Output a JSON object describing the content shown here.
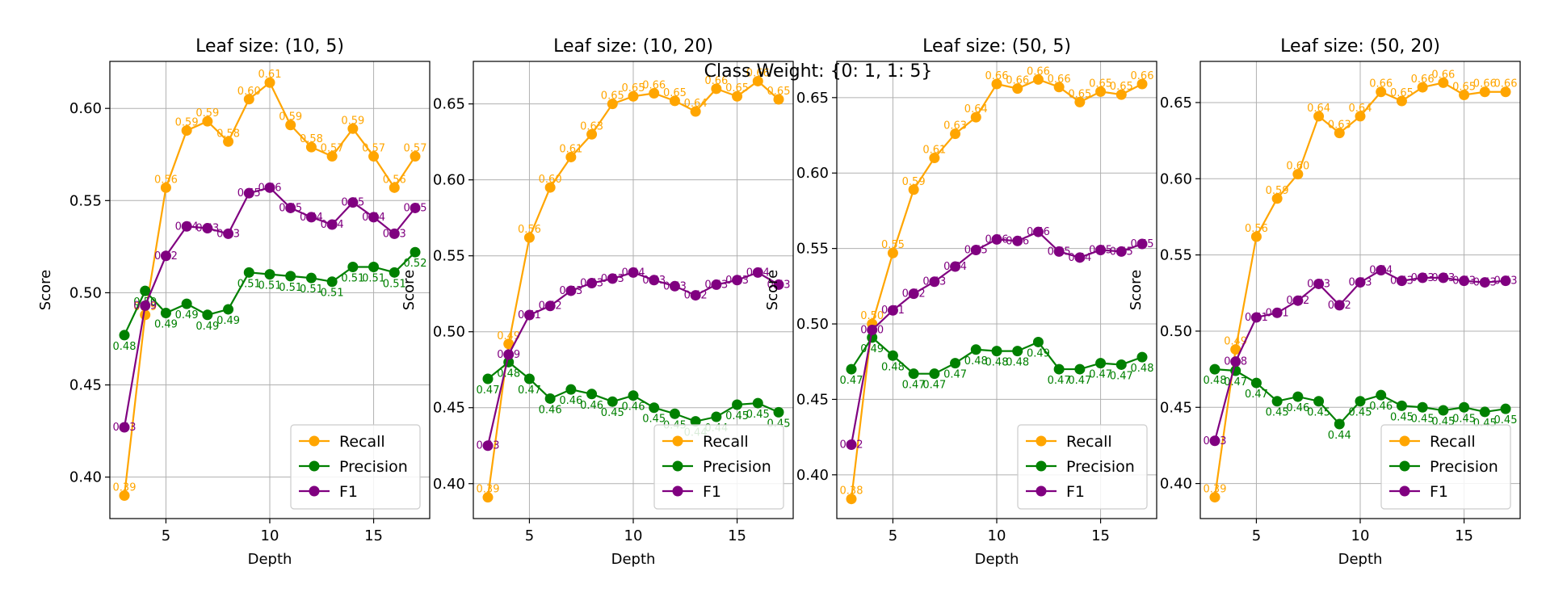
{
  "suptitle": "Class Weight: {0: 1, 1: 5}",
  "colors": {
    "recall": "#FFA500",
    "precision": "#008000",
    "f1": "#800080",
    "grid": "#b0b0b0",
    "axis": "#000000"
  },
  "chart_data": [
    {
      "type": "line",
      "title": "Leaf size: (10, 5)",
      "xlabel": "Depth",
      "ylabel": "Score",
      "x": [
        3,
        4,
        5,
        6,
        7,
        8,
        9,
        10,
        11,
        12,
        13,
        14,
        15,
        16,
        17
      ],
      "xlim": [
        2.3,
        17.7
      ],
      "ylim": [
        0.3775,
        0.6255
      ],
      "xticks": [
        5,
        10,
        15
      ],
      "yticks": [
        0.4,
        0.45,
        0.5,
        0.55,
        0.6
      ],
      "grid": true,
      "legend_position": "lower right",
      "series": [
        {
          "name": "Recall",
          "color": "#FFA500",
          "values": [
            0.39,
            0.488,
            0.557,
            0.588,
            0.593,
            0.582,
            0.605,
            0.614,
            0.591,
            0.579,
            0.574,
            0.589,
            0.574,
            0.557,
            0.574
          ],
          "labels": [
            "0.39",
            "0.49",
            "0.56",
            "0.59",
            "0.59",
            "0.58",
            "0.60",
            "0.61",
            "0.59",
            "0.58",
            "0.57",
            "0.59",
            "0.57",
            "0.56",
            "0.57"
          ]
        },
        {
          "name": "Precision",
          "color": "#008000",
          "values": [
            0.477,
            0.501,
            0.489,
            0.494,
            0.488,
            0.491,
            0.511,
            0.51,
            0.509,
            0.508,
            0.506,
            0.514,
            0.514,
            0.511,
            0.522
          ],
          "labels": [
            "0.48",
            "0.50",
            "0.49",
            "0.49",
            "0.49",
            "0.49",
            "0.51",
            "0.51",
            "0.51",
            "0.51",
            "0.51",
            "0.51",
            "0.51",
            "0.51",
            "0.52"
          ]
        },
        {
          "name": "F1",
          "color": "#800080",
          "values": [
            0.427,
            0.493,
            0.52,
            0.536,
            0.535,
            0.532,
            0.554,
            0.557,
            0.546,
            0.541,
            0.537,
            0.549,
            0.541,
            0.532,
            0.546
          ],
          "labels": [
            "0.43",
            "0.49",
            "0.52",
            "0.54",
            "0.53",
            "0.53",
            "0.55",
            "0.56",
            "0.55",
            "0.54",
            "0.54",
            "0.55",
            "0.54",
            "0.53",
            "0.55"
          ]
        }
      ]
    },
    {
      "type": "line",
      "title": "Leaf size: (10, 20)",
      "xlabel": "Depth",
      "ylabel": "Score",
      "x": [
        3,
        4,
        5,
        6,
        7,
        8,
        9,
        10,
        11,
        12,
        13,
        14,
        15,
        16,
        17
      ],
      "xlim": [
        2.3,
        17.7
      ],
      "ylim": [
        0.377,
        0.678
      ],
      "xticks": [
        5,
        10,
        15
      ],
      "yticks": [
        0.4,
        0.45,
        0.5,
        0.55,
        0.6,
        0.65
      ],
      "grid": true,
      "legend_position": "lower right",
      "series": [
        {
          "name": "Recall",
          "color": "#FFA500",
          "values": [
            0.391,
            0.492,
            0.562,
            0.595,
            0.615,
            0.63,
            0.65,
            0.655,
            0.657,
            0.652,
            0.645,
            0.66,
            0.655,
            0.665,
            0.653
          ],
          "labels": [
            "0.39",
            "0.49",
            "0.56",
            "0.60",
            "0.61",
            "0.63",
            "0.65",
            "0.65",
            "0.66",
            "0.65",
            "0.64",
            "0.66",
            "0.65",
            "0.66",
            "0.65"
          ]
        },
        {
          "name": "Precision",
          "color": "#008000",
          "values": [
            0.469,
            0.48,
            0.469,
            0.456,
            0.462,
            0.459,
            0.454,
            0.458,
            0.45,
            0.446,
            0.441,
            0.444,
            0.452,
            0.453,
            0.447
          ],
          "labels": [
            "0.47",
            "0.48",
            "0.47",
            "0.46",
            "0.46",
            "0.46",
            "0.45",
            "0.46",
            "0.45",
            "0.45",
            "0.44",
            "0.44",
            "0.45",
            "0.45",
            "0.45"
          ]
        },
        {
          "name": "F1",
          "color": "#800080",
          "values": [
            0.425,
            0.485,
            0.511,
            0.517,
            0.527,
            0.532,
            0.535,
            0.539,
            0.534,
            0.53,
            0.524,
            0.531,
            0.534,
            0.539,
            0.531
          ],
          "labels": [
            "0.43",
            "0.49",
            "0.51",
            "0.52",
            "0.53",
            "0.53",
            "0.53",
            "0.54",
            "0.53",
            "0.53",
            "0.52",
            "0.53",
            "0.53",
            "0.54",
            "0.53"
          ]
        }
      ]
    },
    {
      "type": "line",
      "title": "Leaf size: (50, 5)",
      "xlabel": "Depth",
      "ylabel": "Score",
      "x": [
        3,
        4,
        5,
        6,
        7,
        8,
        9,
        10,
        11,
        12,
        13,
        14,
        15,
        16,
        17
      ],
      "xlim": [
        2.3,
        17.7
      ],
      "ylim": [
        0.371,
        0.674
      ],
      "xticks": [
        5,
        10,
        15
      ],
      "yticks": [
        0.4,
        0.45,
        0.5,
        0.55,
        0.6,
        0.65
      ],
      "grid": true,
      "legend_position": "lower right",
      "series": [
        {
          "name": "Recall",
          "color": "#FFA500",
          "values": [
            0.384,
            0.5,
            0.547,
            0.589,
            0.61,
            0.626,
            0.637,
            0.659,
            0.656,
            0.662,
            0.657,
            0.647,
            0.654,
            0.652,
            0.659
          ],
          "labels": [
            "0.38",
            "0.50",
            "0.55",
            "0.59",
            "0.61",
            "0.63",
            "0.64",
            "0.66",
            "0.66",
            "0.66",
            "0.66",
            "0.65",
            "0.65",
            "0.65",
            "0.66"
          ]
        },
        {
          "name": "Precision",
          "color": "#008000",
          "values": [
            0.47,
            0.491,
            0.479,
            0.467,
            0.467,
            0.474,
            0.483,
            0.482,
            0.482,
            0.488,
            0.47,
            0.47,
            0.474,
            0.473,
            0.478
          ],
          "labels": [
            "0.47",
            "0.49",
            "0.48",
            "0.47",
            "0.47",
            "0.47",
            "0.48",
            "0.48",
            "0.48",
            "0.49",
            "0.47",
            "0.47",
            "0.47",
            "0.47",
            "0.48"
          ]
        },
        {
          "name": "F1",
          "color": "#800080",
          "values": [
            0.42,
            0.496,
            0.509,
            0.52,
            0.528,
            0.538,
            0.549,
            0.556,
            0.555,
            0.561,
            0.548,
            0.544,
            0.549,
            0.548,
            0.553
          ],
          "labels": [
            "0.42",
            "0.50",
            "0.51",
            "0.52",
            "0.53",
            "0.54",
            "0.55",
            "0.56",
            "0.56",
            "0.56",
            "0.55",
            "0.54",
            "0.55",
            "0.55",
            "0.55"
          ]
        }
      ]
    },
    {
      "type": "line",
      "title": "Leaf size: (50, 20)",
      "xlabel": "Depth",
      "ylabel": "Score",
      "x": [
        3,
        4,
        5,
        6,
        7,
        8,
        9,
        10,
        11,
        12,
        13,
        14,
        15,
        16,
        17
      ],
      "xlim": [
        2.3,
        17.7
      ],
      "ylim": [
        0.377,
        0.677
      ],
      "xticks": [
        5,
        10,
        15
      ],
      "yticks": [
        0.4,
        0.45,
        0.5,
        0.55,
        0.6,
        0.65
      ],
      "grid": true,
      "legend_position": "lower right",
      "series": [
        {
          "name": "Recall",
          "color": "#FFA500",
          "values": [
            0.391,
            0.488,
            0.562,
            0.587,
            0.603,
            0.641,
            0.63,
            0.641,
            0.657,
            0.651,
            0.66,
            0.663,
            0.655,
            0.657,
            0.657
          ],
          "labels": [
            "0.39",
            "0.49",
            "0.56",
            "0.59",
            "0.60",
            "0.64",
            "0.63",
            "0.64",
            "0.66",
            "0.65",
            "0.66",
            "0.66",
            "0.65",
            "0.66",
            "0.66"
          ]
        },
        {
          "name": "Precision",
          "color": "#008000",
          "values": [
            0.475,
            0.474,
            0.466,
            0.454,
            0.457,
            0.454,
            0.439,
            0.454,
            0.458,
            0.451,
            0.45,
            0.448,
            0.45,
            0.447,
            0.449
          ],
          "labels": [
            "0.48",
            "0.47",
            "0.47",
            "0.45",
            "0.46",
            "0.45",
            "0.44",
            "0.45",
            "0.46",
            "0.45",
            "0.45",
            "0.45",
            "0.45",
            "0.45",
            "0.45"
          ]
        },
        {
          "name": "F1",
          "color": "#800080",
          "values": [
            0.428,
            0.48,
            0.509,
            0.512,
            0.52,
            0.531,
            0.517,
            0.532,
            0.54,
            0.533,
            0.535,
            0.535,
            0.533,
            0.532,
            0.533
          ],
          "labels": [
            "0.43",
            "0.48",
            "0.51",
            "0.51",
            "0.52",
            "0.53",
            "0.52",
            "0.53",
            "0.54",
            "0.53",
            "0.53",
            "0.53",
            "0.53",
            "0.53",
            "0.53"
          ]
        }
      ]
    }
  ]
}
